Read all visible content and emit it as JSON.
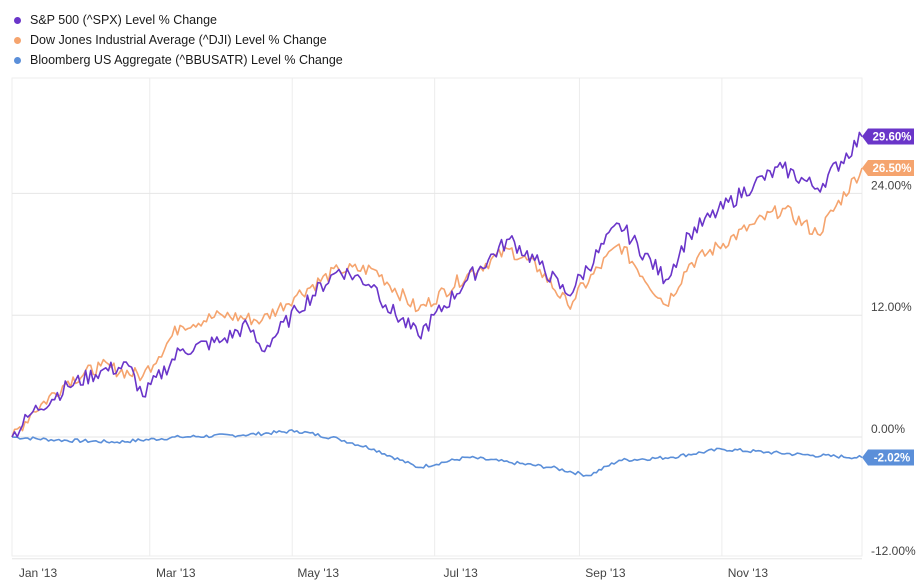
{
  "chart_data": {
    "type": "line",
    "title": "",
    "xlabel": "",
    "ylabel": "",
    "x_ticks": [
      "Jan '13",
      "Mar '13",
      "May '13",
      "Jul '13",
      "Sep '13",
      "Nov '13"
    ],
    "y_ticks": [
      "24.00%",
      "12.00%",
      "0.00%",
      "-12.00%"
    ],
    "y_tick_values": [
      24,
      12,
      0,
      -12
    ],
    "ylim": [
      -12,
      36
    ],
    "grid": true,
    "legend_position": "top-left",
    "series": [
      {
        "name": "S&P 500 (^SPX) Level % Change",
        "color": "#6a35c9",
        "end_label": "29.60%",
        "end_value": 29.6,
        "x": [
          "2013-01-01",
          "2013-01-10",
          "2013-01-25",
          "2013-02-08",
          "2013-02-20",
          "2013-02-26",
          "2013-03-14",
          "2013-04-01",
          "2013-04-12",
          "2013-04-18",
          "2013-05-03",
          "2013-05-21",
          "2013-06-05",
          "2013-06-10",
          "2013-06-24",
          "2013-07-15",
          "2013-08-02",
          "2013-08-15",
          "2013-08-27",
          "2013-09-18",
          "2013-10-08",
          "2013-10-18",
          "2013-11-15",
          "2013-11-27",
          "2013-12-12",
          "2013-12-31"
        ],
        "values": [
          0,
          2.5,
          5.0,
          6.5,
          7.0,
          4.0,
          8.5,
          9.5,
          11.0,
          8.5,
          12.5,
          16.5,
          15.0,
          13.0,
          10.0,
          15.5,
          19.5,
          17.0,
          14.0,
          21.0,
          15.5,
          20.0,
          25.0,
          26.5,
          24.5,
          29.6
        ]
      },
      {
        "name": "Dow Jones Industrial Average (^DJI) Level % Change",
        "color": "#f5a46e",
        "end_label": "26.50%",
        "end_value": 26.5,
        "x": [
          "2013-01-01",
          "2013-01-10",
          "2013-01-25",
          "2013-02-08",
          "2013-02-26",
          "2013-03-14",
          "2013-04-01",
          "2013-04-18",
          "2013-05-03",
          "2013-05-21",
          "2013-06-05",
          "2013-06-24",
          "2013-07-15",
          "2013-08-02",
          "2013-08-15",
          "2013-08-27",
          "2013-09-18",
          "2013-10-08",
          "2013-10-18",
          "2013-11-15",
          "2013-11-27",
          "2013-12-12",
          "2013-12-31"
        ],
        "values": [
          0,
          2.5,
          5.5,
          7.0,
          6.0,
          11.0,
          12.0,
          11.5,
          14.0,
          16.5,
          16.5,
          12.5,
          16.0,
          18.5,
          16.5,
          13.0,
          19.0,
          13.0,
          17.0,
          21.0,
          22.5,
          20.0,
          26.5
        ]
      },
      {
        "name": "Bloomberg US Aggregate (^BBUSATR) Level % Change",
        "color": "#5b8fd9",
        "end_label": "-2.02%",
        "end_value": -2.02,
        "x": [
          "2013-01-01",
          "2013-01-20",
          "2013-02-15",
          "2013-03-14",
          "2013-04-10",
          "2013-05-03",
          "2013-05-21",
          "2013-06-05",
          "2013-06-24",
          "2013-07-15",
          "2013-08-02",
          "2013-08-20",
          "2013-09-05",
          "2013-09-18",
          "2013-10-10",
          "2013-11-01",
          "2013-11-20",
          "2013-12-10",
          "2013-12-31"
        ],
        "values": [
          0,
          -0.3,
          -0.5,
          0,
          0.2,
          0.6,
          -0.2,
          -1.2,
          -3.0,
          -2.0,
          -2.5,
          -3.0,
          -3.8,
          -2.3,
          -2.0,
          -1.2,
          -1.5,
          -1.8,
          -2.02
        ]
      }
    ]
  }
}
